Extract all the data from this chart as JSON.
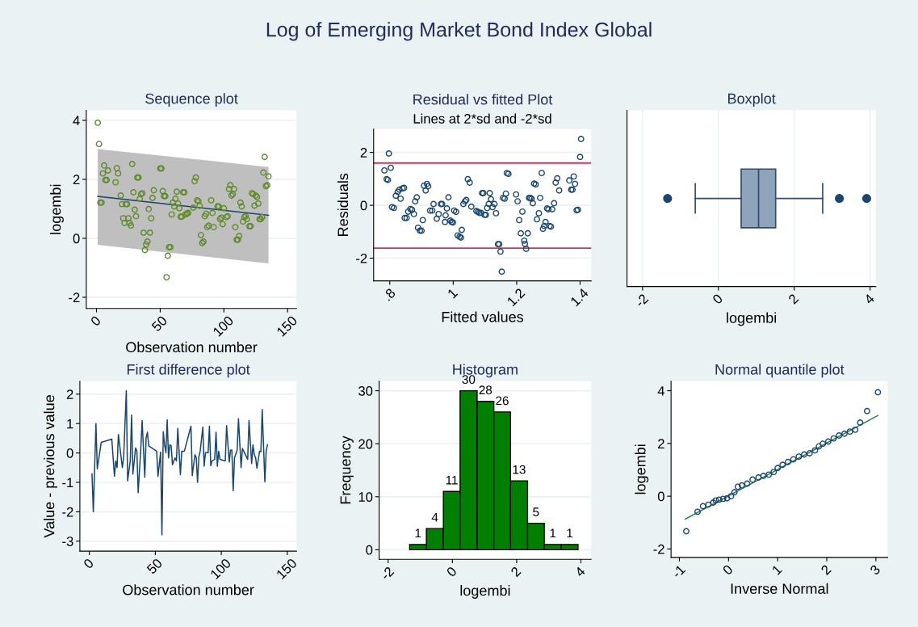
{
  "chart_data": [
    {
      "type": "other",
      "title": "Log of Emerging Market Bond Index Global"
    },
    {
      "type": "scatter",
      "title": "Sequence plot",
      "xlabel": "Observation number",
      "ylabel": "logembi",
      "xlim": [
        -8,
        157
      ],
      "xticks": [
        0,
        50,
        100,
        150
      ],
      "ylim": [
        -2.38,
        4.34
      ],
      "yticks": [
        -2,
        0,
        2,
        4
      ],
      "grid": "y",
      "series": [
        {
          "type": "line",
          "color": "#1a476f",
          "x": [
            1,
            135
          ],
          "values": [
            1.42,
            0.78
          ],
          "lower": [
            -0.22,
            -0.85
          ],
          "upper": [
            3.03,
            2.42
          ]
        },
        {
          "type": "scatter",
          "marker": "circle",
          "color": "#5f8a2a",
          "x": [
            1,
            2,
            3,
            4,
            5,
            6,
            7,
            8,
            9,
            15,
            16,
            17,
            19,
            20,
            21,
            22,
            23,
            24,
            25,
            26,
            27,
            28,
            29,
            30,
            31,
            32,
            33,
            34,
            35,
            36,
            37,
            38,
            39,
            40,
            41,
            42,
            43,
            44,
            45,
            50,
            51,
            52,
            53,
            54,
            55,
            56,
            57,
            58,
            59,
            60,
            61,
            62,
            63,
            64,
            65,
            66,
            67,
            68,
            69,
            70,
            71,
            72,
            76,
            77,
            78,
            79,
            80,
            81,
            82,
            83,
            84,
            85,
            86,
            87,
            88,
            90,
            91,
            92,
            95,
            96,
            97,
            98,
            99,
            100,
            102,
            103,
            104,
            105,
            106,
            107,
            108,
            109,
            110,
            111,
            112,
            113,
            114,
            115,
            116,
            117,
            118,
            120,
            121,
            122,
            123,
            124,
            125,
            126,
            127,
            128,
            129,
            130,
            131,
            132,
            133,
            134,
            135
          ],
          "values": [
            3.92,
            3.2,
            1.21,
            1.21,
            2.2,
            2.47,
            1.98,
            1.98,
            2.3,
            1.9,
            2.38,
            2.2,
            1.45,
            1.16,
            0.68,
            0.52,
            1.16,
            1.16,
            0.68,
            0.52,
            0.43,
            2.52,
            1.56,
            0.97,
            0.75,
            2.06,
            2.06,
            1.34,
            1.5,
            1.53,
            0.19,
            -0.4,
            -0.21,
            -0.11,
            0.99,
            0.19,
            0.68,
            1.37,
            1.63,
            2.37,
            2.37,
            1.6,
            1.43,
            1.43,
            -1.32,
            -0.59,
            -0.3,
            -0.3,
            0.81,
            1.21,
            1.08,
            1.34,
            1.58,
            1.18,
            1.02,
            0.73,
            0.73,
            1.56,
            1.56,
            0.81,
            0.84,
            0.86,
            1.04,
            1.94,
            2.06,
            1.29,
            1.26,
            1.1,
            0.11,
            -0.16,
            -0.11,
            0.75,
            0.83,
            0.38,
            0.43,
            1.29,
            0.86,
            0.38,
            1.08,
            1.08,
            0.65,
            0.7,
            0.48,
            1.02,
            0.72,
            0.75,
            1.67,
            1.8,
            1.45,
            1.5,
            1.67,
            0.38,
            -0.05,
            -0.05,
            0.08,
            1.21,
            1.08,
            0.57,
            0.72,
            0.75,
            0.65,
            0.41,
            0.41,
            1.53,
            1.5,
            1.11,
            1.45,
            1.4,
            1.18,
            0.65,
            0.65,
            0.72,
            2.23,
            2.76,
            1.77,
            1.8,
            2.1
          ]
        }
      ]
    },
    {
      "type": "scatter",
      "title": "Residual vs fitted Plot",
      "subtitle": "Lines at 2*sd and -2*sd",
      "xlabel": "Fitted values",
      "ylabel": "Residuals",
      "xlim": [
        0.749,
        1.435
      ],
      "xticks": [
        {
          "value": 0.8,
          "label": ".8"
        },
        1,
        1.2,
        1.4
      ],
      "ylim": [
        -2.86,
        2.88
      ],
      "yticks": [
        -2,
        0,
        2
      ],
      "grid": "y",
      "marker": "circle",
      "ref_lines": [
        {
          "axis": "y",
          "value": 1.6,
          "color": "#c8385a"
        },
        {
          "axis": "y",
          "value": -1.62,
          "color": "#c8385a"
        }
      ],
      "series": [
        {
          "color": "#1a476f",
          "x": [
            0.783,
            0.79,
            0.794,
            0.797,
            0.803,
            0.807,
            0.813,
            0.819,
            0.825,
            0.83,
            0.834,
            0.84,
            0.845,
            0.847,
            0.853,
            0.858,
            0.865,
            0.87,
            0.876,
            0.88,
            0.885,
            0.889,
            0.895,
            0.9,
            0.904,
            0.908,
            0.913,
            0.917,
            0.921,
            0.927,
            0.934,
            0.938,
            0.948,
            0.954,
            0.961,
            0.965,
            0.974,
            0.976,
            0.98,
            0.985,
            0.991,
            0.995,
            0.999,
            1.003,
            1.009,
            1.014,
            1.02,
            1.024,
            1.027,
            1.032,
            1.037,
            1.041,
            1.046,
            1.052,
            1.057,
            1.073,
            1.078,
            1.082,
            1.088,
            1.091,
            1.095,
            1.099,
            1.103,
            1.107,
            1.112,
            1.115,
            1.119,
            1.124,
            1.13,
            1.135,
            1.141,
            1.145,
            1.149,
            1.153,
            1.157,
            1.162,
            1.166,
            1.169,
            1.174,
            1.198,
            1.203,
            1.208,
            1.213,
            1.218,
            1.224,
            1.226,
            1.23,
            1.235,
            1.239,
            1.243,
            1.247,
            1.251,
            1.255,
            1.26,
            1.264,
            1.27,
            1.274,
            1.279,
            1.283,
            1.287,
            1.291,
            1.296,
            1.3,
            1.304,
            1.308,
            1.312,
            1.318,
            1.323,
            1.328,
            1.334,
            1.366,
            1.372,
            1.376,
            1.38,
            1.384,
            1.389,
            1.393,
            1.4,
            1.403
          ],
          "values": [
            1.32,
            0.99,
            0.96,
            1.96,
            1.42,
            -0.07,
            -0.1,
            0.36,
            0.51,
            0.59,
            0.25,
            0.64,
            0.66,
            -0.48,
            -0.48,
            -0.24,
            -0.14,
            -0.17,
            -0.33,
            0.15,
            0.3,
            -0.85,
            -0.96,
            -0.96,
            -0.56,
            0.74,
            0.56,
            0.81,
            0.72,
            -0.2,
            -0.2,
            0.05,
            -0.51,
            -0.33,
            0.05,
            0.05,
            -0.63,
            -0.38,
            -0.12,
            0.3,
            -0.58,
            -0.63,
            -0.65,
            -0.2,
            -0.25,
            -1.14,
            -1.19,
            -1.22,
            -0.93,
            0.05,
            0.15,
            0.2,
            0.99,
            0.86,
            -0.05,
            -0.22,
            -0.25,
            -0.29,
            -0.29,
            0.46,
            0.46,
            -0.36,
            -0.36,
            -0.1,
            0.05,
            0.46,
            0.23,
            -0.07,
            0.05,
            -0.3,
            -1.47,
            -1.47,
            -1.75,
            -2.51,
            0.28,
            0.25,
            0.44,
            1.22,
            1.19,
            0.41,
            0.15,
            -0.56,
            -1.06,
            -0.24,
            -1.34,
            -1.46,
            -1.65,
            -1.06,
            0.28,
            0.28,
            0.25,
            0.08,
            0.82,
            0.79,
            -0.53,
            -0.3,
            0.28,
            1.22,
            -0.89,
            -0.78,
            -0.63,
            -0.12,
            -0.15,
            -0.78,
            -0.81,
            -0.15,
            0.08,
            0.86,
            1.02,
            0.56,
            0.94,
            0.59,
            0.59,
            1.09,
            0.81,
            -0.19,
            -0.17,
            1.83,
            2.51
          ]
        }
      ]
    },
    {
      "type": "box",
      "title": "Boxplot",
      "xlabel": "logembi",
      "orientation": "horizontal",
      "categories": [
        null
      ],
      "xlim": [
        -2.41,
        4.15
      ],
      "xticks": [
        -2,
        0,
        2,
        4
      ],
      "grid": "x",
      "tick_labels": "x",
      "color": "#8fa3bb",
      "boxes": [
        {
          "low": -0.61,
          "q1": 0.6,
          "median": 1.06,
          "q3": 1.51,
          "high": 2.75,
          "outliers": [
            -1.34,
            3.19,
            3.91
          ]
        }
      ]
    },
    {
      "type": "line",
      "title": "First difference plot",
      "xlabel": "Observation number",
      "ylabel": "Value - previous value",
      "xlim": [
        -7.2,
        157
      ],
      "xticks": [
        0,
        50,
        100,
        150
      ],
      "ylim": [
        -3.34,
        2.44
      ],
      "yticks": [
        -3,
        -2,
        -1,
        0,
        1,
        2
      ],
      "grid": "y",
      "line_style": "solid",
      "series": [
        {
          "color": "#1a476f",
          "x": [
            2,
            3,
            5,
            6,
            9,
            17,
            19,
            20,
            21,
            22,
            25,
            26,
            28,
            29,
            31,
            32,
            33,
            35,
            36,
            37,
            39,
            40,
            42,
            43,
            44,
            45,
            51,
            52,
            54,
            55,
            56,
            57,
            58,
            59,
            60,
            61,
            62,
            63,
            64,
            65,
            66,
            67,
            69,
            70,
            72,
            77,
            78,
            80,
            81,
            82,
            83,
            84,
            86,
            87,
            88,
            90,
            91,
            92,
            93,
            95,
            96,
            97,
            98,
            99,
            103,
            104,
            106,
            107,
            108,
            109,
            110,
            112,
            113,
            115,
            116,
            120,
            121,
            123,
            124,
            125,
            126,
            127,
            129,
            130,
            131,
            133,
            134,
            135
          ],
          "values": [
            -0.71,
            -2.0,
            1.0,
            -0.54,
            0.36,
            0.47,
            -0.79,
            -0.27,
            -0.5,
            0.63,
            -0.5,
            -0.13,
            2.12,
            -0.95,
            -0.27,
            1.29,
            -0.72,
            0.17,
            0.07,
            -1.35,
            0.17,
            1.1,
            -0.83,
            0.51,
            0.7,
            0.24,
            0.06,
            -0.8,
            0.03,
            -2.79,
            0.72,
            0.28,
            0.01,
            1.13,
            -0.17,
            0.28,
            0.24,
            -0.4,
            -0.27,
            -0.17,
            -0.27,
            0.83,
            -0.74,
            0.06,
            0.06,
            0.91,
            -0.77,
            -0.06,
            -0.16,
            -1.0,
            -0.13,
            0.06,
            0.88,
            -0.45,
            0.01,
            0.01,
            0.91,
            -0.43,
            -0.27,
            -0.22,
            0.7,
            -0.45,
            0.06,
            -0.22,
            -0.27,
            0.93,
            -0.31,
            0.1,
            0.1,
            -1.29,
            -0.17,
            0.1,
            1.16,
            -0.5,
            0.15,
            -0.22,
            1.1,
            -0.36,
            0.28,
            -0.06,
            -0.16,
            -0.52,
            0.06,
            0.04,
            1.48,
            -0.98,
            0.06,
            0.28
          ]
        }
      ]
    },
    {
      "type": "histogram",
      "title": "Histogram",
      "xlabel": "logembi",
      "ylabel": "Frequency",
      "color": "#007f00",
      "data_labels": true,
      "grid": "y",
      "bins": [
        -1.33,
        -0.81,
        -0.28,
        0.24,
        0.77,
        1.29,
        1.81,
        2.34,
        2.86,
        3.39,
        3.91
      ],
      "values": [
        1,
        4,
        11,
        30,
        28,
        26,
        13,
        5,
        1,
        1
      ],
      "xlim": [
        -2.28,
        4.32
      ],
      "xticks": [
        -2,
        0,
        2,
        4
      ],
      "ylim": [
        -1.8,
        31.8
      ],
      "yticks": [
        0,
        10,
        20,
        30
      ]
    },
    {
      "type": "scatter",
      "title": "Normal quantile plot",
      "xlabel": "Inverse Normal",
      "ylabel": "logembi",
      "xlim": [
        -1.17,
        3.24
      ],
      "xticks": [
        -1,
        0,
        1,
        2,
        3
      ],
      "ylim": [
        -2.32,
        4.36
      ],
      "yticks": [
        -2,
        0,
        2,
        4
      ],
      "series": [
        {
          "type": "line",
          "color": "#2e7d5b",
          "x": [
            -0.88,
            3.04
          ],
          "values": [
            -0.87,
            3.06
          ]
        },
        {
          "type": "scatter",
          "marker": "circle",
          "color": "#1a476f",
          "x": [
            -0.86,
            -0.63,
            -0.52,
            -0.41,
            -0.31,
            -0.26,
            -0.19,
            -0.11,
            -0.03,
            0.05,
            0.12,
            0.19,
            0.27,
            0.38,
            0.49,
            0.61,
            0.71,
            0.82,
            0.92,
            1.0,
            1.1,
            1.21,
            1.32,
            1.43,
            1.54,
            1.65,
            1.76,
            1.84,
            1.92,
            2.03,
            2.14,
            2.25,
            2.36,
            2.47,
            2.58,
            2.68,
            2.82,
            3.04
          ],
          "values": [
            -1.33,
            -0.59,
            -0.38,
            -0.32,
            -0.24,
            -0.16,
            -0.13,
            -0.1,
            -0.08,
            0.0,
            0.15,
            0.36,
            0.41,
            0.48,
            0.63,
            0.71,
            0.77,
            0.82,
            0.92,
            1.07,
            1.19,
            1.3,
            1.4,
            1.5,
            1.58,
            1.63,
            1.74,
            1.89,
            1.99,
            2.07,
            2.19,
            2.3,
            2.37,
            2.45,
            2.52,
            2.79,
            3.23,
            3.94
          ]
        }
      ]
    }
  ]
}
